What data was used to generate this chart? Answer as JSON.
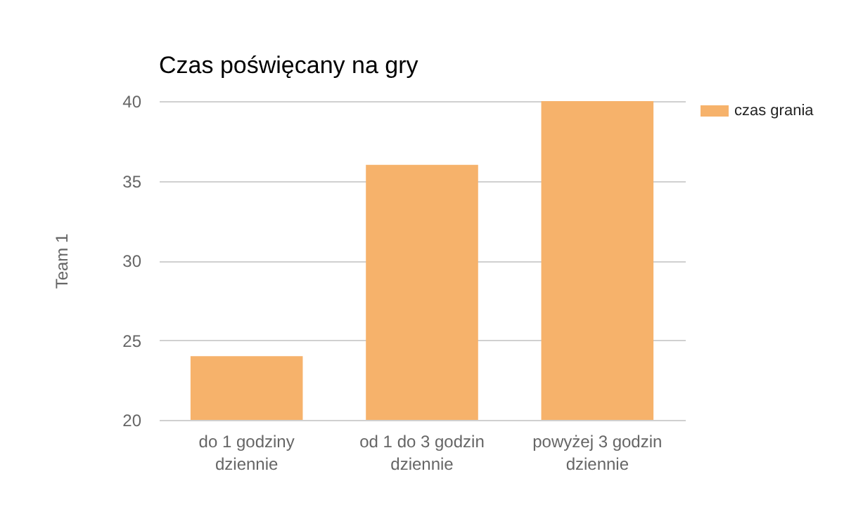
{
  "chart_data": {
    "type": "bar",
    "title": "Czas poświęcany na gry",
    "ylabel": "Team 1",
    "categories": [
      "do 1 godziny dziennie",
      "od 1 do 3 godzin dziennie",
      "powyżej 3 godzin dziennie"
    ],
    "series": [
      {
        "name": "czas grania",
        "color": "#f6b26b",
        "values": [
          24,
          36,
          40
        ]
      }
    ],
    "ylim": [
      20,
      40
    ],
    "yticks": [
      20,
      25,
      30,
      35,
      40
    ],
    "grid": "y",
    "legend": "top right"
  }
}
